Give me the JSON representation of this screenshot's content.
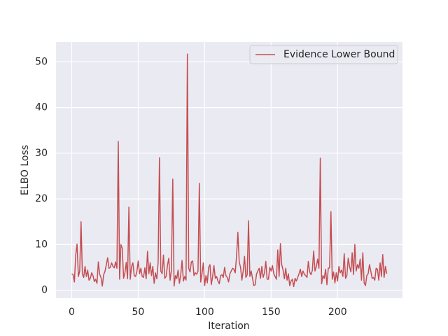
{
  "chart_data": {
    "type": "line",
    "x_label": "Iteration",
    "y_label": "ELBO Loss",
    "x": [
      0,
      1,
      2,
      3,
      4,
      5,
      6,
      7,
      8,
      9,
      10,
      11,
      12,
      13,
      14,
      15,
      16,
      17,
      18,
      19,
      20,
      21,
      22,
      23,
      24,
      25,
      26,
      27,
      28,
      29,
      30,
      31,
      32,
      33,
      34,
      35,
      36,
      37,
      38,
      39,
      40,
      41,
      42,
      43,
      44,
      45,
      46,
      47,
      48,
      49,
      50,
      51,
      52,
      53,
      54,
      55,
      56,
      57,
      58,
      59,
      60,
      61,
      62,
      63,
      64,
      65,
      66,
      67,
      68,
      69,
      70,
      71,
      72,
      73,
      74,
      75,
      76,
      77,
      78,
      79,
      80,
      81,
      82,
      83,
      84,
      85,
      86,
      87,
      88,
      89,
      90,
      91,
      92,
      93,
      94,
      95,
      96,
      97,
      98,
      99,
      100,
      101,
      102,
      103,
      104,
      105,
      106,
      107,
      108,
      109,
      110,
      111,
      112,
      113,
      114,
      115,
      116,
      117,
      118,
      119,
      120,
      121,
      122,
      123,
      124,
      125,
      126,
      127,
      128,
      129,
      130,
      131,
      132,
      133,
      134,
      135,
      136,
      137,
      138,
      139,
      140,
      141,
      142,
      143,
      144,
      145,
      146,
      147,
      148,
      149,
      150,
      151,
      152,
      153,
      154,
      155,
      156,
      157,
      158,
      159,
      160,
      161,
      162,
      163,
      164,
      165,
      166,
      167,
      168,
      169,
      170,
      171,
      172,
      173,
      174,
      175,
      176,
      177,
      178,
      179,
      180,
      181,
      182,
      183,
      184,
      185,
      186,
      187,
      188,
      189,
      190,
      191,
      192,
      193,
      194,
      195,
      196,
      197,
      198,
      199,
      200,
      201,
      202,
      203,
      204,
      205,
      206,
      207,
      208,
      209,
      210,
      211,
      212,
      213,
      214,
      215,
      216,
      217,
      218,
      219,
      220,
      221,
      222,
      223,
      224,
      225,
      226,
      227,
      228,
      229,
      230,
      231,
      232,
      233,
      234,
      235,
      236,
      237
    ],
    "series": [
      {
        "name": "Evidence Lower Bound",
        "color": "#c44e52",
        "values": [
          3.6,
          3.4,
          1.8,
          7.8,
          10.1,
          3.0,
          4.2,
          15.0,
          3.5,
          2.8,
          5.2,
          3.0,
          4.4,
          2.2,
          2.6,
          3.8,
          3.2,
          1.9,
          2.4,
          1.5,
          6.2,
          3.5,
          2.8,
          0.9,
          3.4,
          4.1,
          5.6,
          7.1,
          4.8,
          5.0,
          6.0,
          5.2,
          4.9,
          6.2,
          4.8,
          32.6,
          2.4,
          10.0,
          9.2,
          2.6,
          3.8,
          6.1,
          2.5,
          18.2,
          2.4,
          5.2,
          6.0,
          3.2,
          3.0,
          4.1,
          6.4,
          3.6,
          4.8,
          3.0,
          2.8,
          4.9,
          2.5,
          8.5,
          3.6,
          6.0,
          3.2,
          5.2,
          1.5,
          3.8,
          2.5,
          6.1,
          29.0,
          4.2,
          3.6,
          7.7,
          2.6,
          3.0,
          5.4,
          7.0,
          2.2,
          4.4,
          24.3,
          0.9,
          3.2,
          2.5,
          4.4,
          1.5,
          3.4,
          6.5,
          2.0,
          3.0,
          2.2,
          51.7,
          4.8,
          4.0,
          6.2,
          6.4,
          3.2,
          3.8,
          3.5,
          4.2,
          23.4,
          1.8,
          3.6,
          6.0,
          1.0,
          3.2,
          1.6,
          5.0,
          5.6,
          1.2,
          3.0,
          5.4,
          2.6,
          3.0,
          2.0,
          1.4,
          3.2,
          3.4,
          2.8,
          5.0,
          3.2,
          2.8,
          1.8,
          3.6,
          4.2,
          4.8,
          4.6,
          3.8,
          7.5,
          12.7,
          6.2,
          5.0,
          2.2,
          4.2,
          7.4,
          2.8,
          3.4,
          15.2,
          3.0,
          4.2,
          2.6,
          1.0,
          1.2,
          3.5,
          4.2,
          4.8,
          2.6,
          5.2,
          2.8,
          3.8,
          6.3,
          2.4,
          2.4,
          5.0,
          4.2,
          5.4,
          3.6,
          3.0,
          2.4,
          8.8,
          3.0,
          10.2,
          5.6,
          4.4,
          2.5,
          4.8,
          2.2,
          3.6,
          1.0,
          2.0,
          2.4,
          0.8,
          2.6,
          2.0,
          2.8,
          3.6,
          4.6,
          3.0,
          4.2,
          3.5,
          3.2,
          2.8,
          6.3,
          4.0,
          3.4,
          4.3,
          8.6,
          4.2,
          5.2,
          6.8,
          4.8,
          28.9,
          1.4,
          3.2,
          2.6,
          4.6,
          1.2,
          4.8,
          4.9,
          17.2,
          2.4,
          4.0,
          1.6,
          3.8,
          2.0,
          5.2,
          3.8,
          4.4,
          3.0,
          8.0,
          2.6,
          3.2,
          7.0,
          5.2,
          4.0,
          8.2,
          3.4,
          10.0,
          4.2,
          5.6,
          4.8,
          6.8,
          2.2,
          8.2,
          1.6,
          1.0,
          3.2,
          3.6,
          5.6,
          4.2,
          2.6,
          2.8,
          2.2,
          4.8,
          4.6,
          2.2,
          6.0,
          3.0,
          7.8,
          2.8,
          5.2,
          3.6
        ]
      }
    ],
    "xlim": [
      -11.85,
      248.85
    ],
    "ylim": [
      -1.75,
      54.35
    ],
    "xticks": [
      0,
      50,
      100,
      150,
      200
    ],
    "yticks": [
      0,
      10,
      20,
      30,
      40,
      50
    ],
    "grid": true,
    "legend": "upper right"
  }
}
